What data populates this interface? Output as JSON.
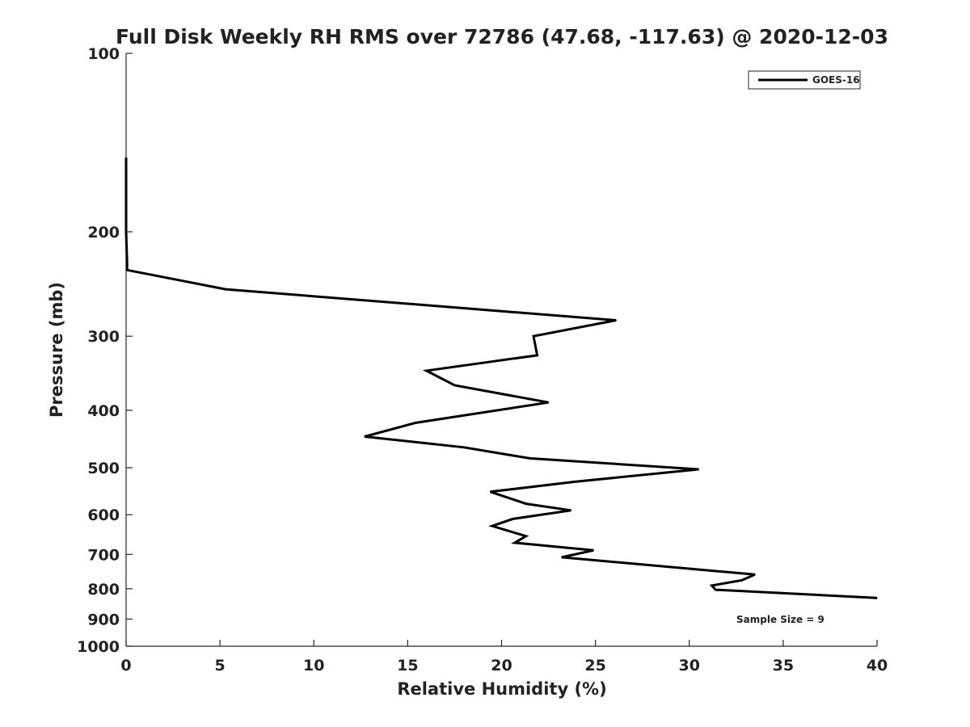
{
  "chart_data": {
    "type": "line",
    "title": "Full Disk Weekly RH RMS over 72786 (47.68, -117.63) @ 2020-12-03",
    "xlabel": "Relative Humidity (%)",
    "ylabel": "Pressure (mb)",
    "xlim": [
      0,
      40
    ],
    "ylim": [
      100,
      1000
    ],
    "yscale": "log",
    "y_reversed": true,
    "grid": false,
    "legend_position": "top-right",
    "x_ticks": [
      "0",
      "5",
      "10",
      "15",
      "20",
      "25",
      "30",
      "35",
      "40"
    ],
    "y_ticks": [
      "100",
      "200",
      "300",
      "400",
      "500",
      "600",
      "700",
      "800",
      "900",
      "1000"
    ],
    "annotation": "Sample Size = 9",
    "series": [
      {
        "name": "GOES-16",
        "color": "#000000",
        "points": [
          {
            "x": 0.0,
            "y": 150
          },
          {
            "x": 0.0,
            "y": 175
          },
          {
            "x": 0.0,
            "y": 200
          },
          {
            "x": 0.05,
            "y": 225
          },
          {
            "x": 0.05,
            "y": 232
          },
          {
            "x": 5.3,
            "y": 250
          },
          {
            "x": 26.1,
            "y": 282
          },
          {
            "x": 21.7,
            "y": 300
          },
          {
            "x": 21.9,
            "y": 323
          },
          {
            "x": 16.0,
            "y": 343
          },
          {
            "x": 17.5,
            "y": 363
          },
          {
            "x": 22.5,
            "y": 388
          },
          {
            "x": 15.4,
            "y": 420
          },
          {
            "x": 12.7,
            "y": 443
          },
          {
            "x": 18.0,
            "y": 462
          },
          {
            "x": 21.5,
            "y": 482
          },
          {
            "x": 30.5,
            "y": 503
          },
          {
            "x": 23.9,
            "y": 528
          },
          {
            "x": 19.4,
            "y": 549
          },
          {
            "x": 21.3,
            "y": 575
          },
          {
            "x": 23.7,
            "y": 590
          },
          {
            "x": 20.6,
            "y": 610
          },
          {
            "x": 19.5,
            "y": 627
          },
          {
            "x": 21.3,
            "y": 652
          },
          {
            "x": 20.7,
            "y": 669
          },
          {
            "x": 24.9,
            "y": 689
          },
          {
            "x": 23.2,
            "y": 708
          },
          {
            "x": 33.5,
            "y": 757
          },
          {
            "x": 32.8,
            "y": 774
          },
          {
            "x": 31.2,
            "y": 790
          },
          {
            "x": 31.4,
            "y": 803
          },
          {
            "x": 40.0,
            "y": 829
          }
        ]
      }
    ]
  }
}
